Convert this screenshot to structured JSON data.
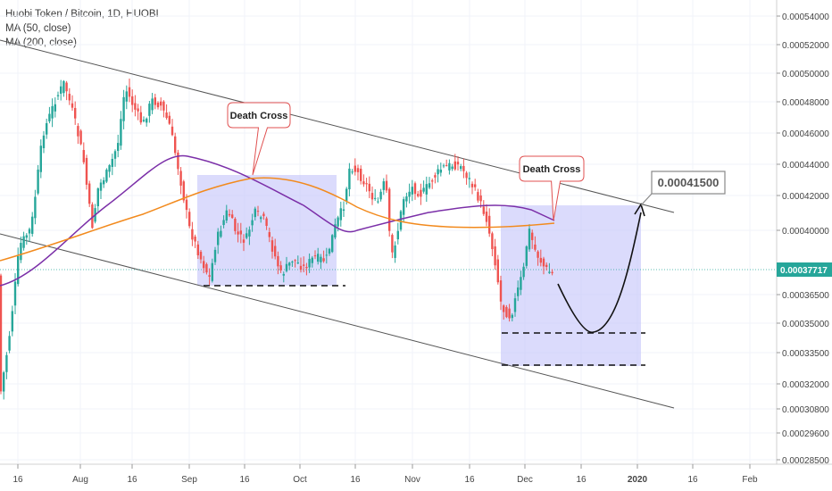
{
  "header": {
    "symbol_line": "Huobi Token / Bitcoin, 1D, HUOBI",
    "indicators": [
      "MA (50, close)",
      "MA (200, close)"
    ]
  },
  "colors": {
    "up": "#26a69a",
    "down": "#ef5350",
    "ma50": "#7b2fa8",
    "ma200": "#f28a1d",
    "box": "#c7c7fb",
    "grid": "#f0f3fa",
    "price_tag": "#26a69a",
    "channel": "#555555",
    "callout_border": "#e05050"
  },
  "chart_data": {
    "type": "candlestick",
    "title": "Huobi Token / Bitcoin, 1D, HUOBI",
    "ylim": [
      0.000275,
      0.000546
    ],
    "y_ticks": [
      "0.00054000",
      "0.00052000",
      "0.00050000",
      "0.00048000",
      "0.00046000",
      "0.00044000",
      "0.00042000",
      "0.00040000",
      "0.00036500",
      "0.00035000",
      "0.00033500",
      "0.00032000",
      "0.00030800",
      "0.00029600",
      "0.00028500"
    ],
    "x_ticks": [
      "16",
      "Aug",
      "16",
      "Sep",
      "16",
      "Oct",
      "16",
      "Nov",
      "16",
      "Dec",
      "16",
      "2020",
      "16",
      "Feb"
    ],
    "last_price": "0.00037717",
    "series": [
      {
        "name": "MA (50, close)"
      },
      {
        "name": "MA (200, close)"
      }
    ],
    "annotations": {
      "death_cross_1": "Death Cross",
      "death_cross_2": "Death Cross",
      "target": "0.00041500"
    }
  }
}
